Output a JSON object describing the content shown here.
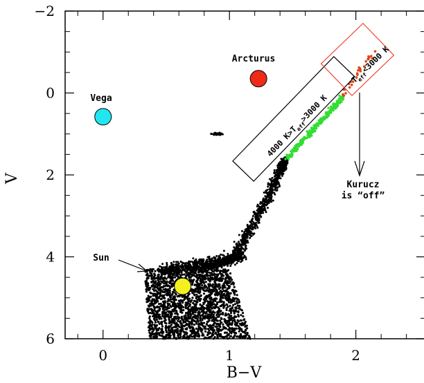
{
  "chart_data": {
    "type": "scatter",
    "title": "",
    "xlabel": "B−V",
    "ylabel": "V",
    "xlim": [
      -0.3,
      2.55
    ],
    "ylim": [
      6,
      -2
    ],
    "y_inverted": true,
    "grid": false,
    "x_ticks": [
      {
        "v": 0,
        "label": "0"
      },
      {
        "v": 1,
        "label": "1"
      },
      {
        "v": 2,
        "label": "2"
      }
    ],
    "y_ticks": [
      {
        "v": -2,
        "label": "−2"
      },
      {
        "v": 0,
        "label": "0"
      },
      {
        "v": 2,
        "label": "2"
      },
      {
        "v": 4,
        "label": "4"
      },
      {
        "v": 6,
        "label": "6"
      }
    ],
    "stars": [
      {
        "name": "Vega",
        "x": 0.0,
        "y": 0.58,
        "color": "#22e6ef"
      },
      {
        "name": "Arcturus",
        "x": 1.23,
        "y": -0.35,
        "color": "#ee2a18"
      },
      {
        "name": "Sun",
        "x": 0.63,
        "y": 4.72,
        "color": "#f4f020"
      }
    ],
    "star_labels": {
      "vega": "Vega",
      "arcturus": "Arcturus",
      "sun": "Sun"
    },
    "series": [
      {
        "color": "#000000",
        "kind": "main sequence / giant branch (dense black points)",
        "ridge": [
          [
            0.38,
            6.0
          ],
          [
            0.5,
            5.3
          ],
          [
            0.6,
            4.6
          ],
          [
            0.7,
            4.35
          ],
          [
            0.9,
            4.2
          ],
          [
            1.05,
            4.0
          ],
          [
            1.15,
            3.4
          ],
          [
            1.3,
            2.6
          ],
          [
            1.4,
            1.9
          ],
          [
            1.45,
            1.6
          ]
        ],
        "clump": {
          "x": 0.9,
          "y": 1.0
        }
      },
      {
        "color": "#33dd33",
        "kind": "4000 K > T_eff > 3000 K",
        "range_x": [
          1.45,
          1.9
        ],
        "range_y": [
          1.6,
          0.1
        ]
      },
      {
        "color": "#dd4411",
        "kind": "T_eff < 3000 K",
        "range_x": [
          1.88,
          2.13
        ],
        "range_y": [
          0.1,
          -0.95
        ]
      }
    ],
    "boxes": [
      {
        "label_parts": [
          "4000 K>T",
          "eff",
          ">3000 K"
        ],
        "color": "#000000"
      },
      {
        "label_parts": [
          "T",
          "eff",
          "<3000 K"
        ],
        "color": "#ee4433"
      }
    ],
    "annotations": {
      "kurucz_line1": "Kurucz",
      "kurucz_line2": "is “off”"
    }
  }
}
